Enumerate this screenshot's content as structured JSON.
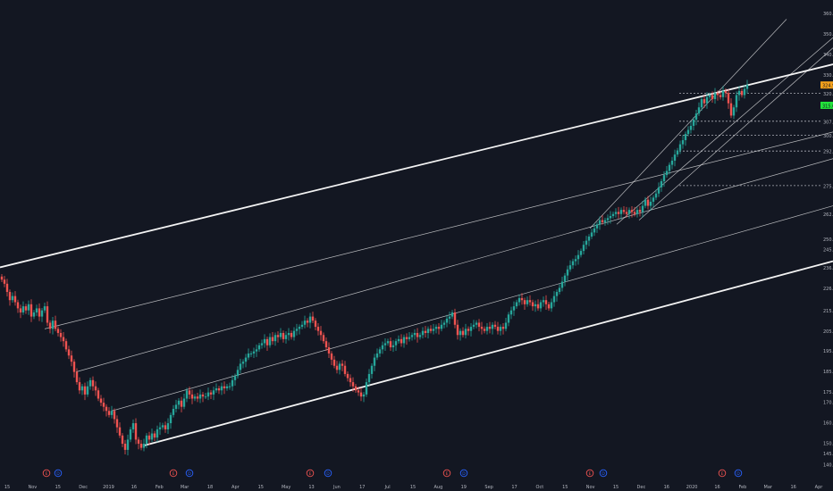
{
  "colors": {
    "background": "#131722",
    "up": "#26a69a",
    "down": "#ef5350",
    "axis_text": "#b2b5be",
    "line": "#ffffff",
    "dotted": "#d1d4dc",
    "last_price_badge": "#f7a21b",
    "green_badge": "#22e33b",
    "event_red": "#ef5350",
    "event_blue": "#2962ff"
  },
  "chart_data": {
    "type": "candlestick",
    "title": "",
    "xlabel": "",
    "ylabel": "",
    "ylim": [
      140,
      362
    ],
    "x_ticks": [
      "15",
      "Nov",
      "15",
      "Dec",
      "2019",
      "16",
      "Feb",
      "Mar",
      "18",
      "Apr",
      "15",
      "May",
      "13",
      "Jun",
      "17",
      "Jul",
      "15",
      "Aug",
      "19",
      "Sep",
      "17",
      "Oct",
      "15",
      "Nov",
      "15",
      "Dec",
      "16",
      "2020",
      "16",
      "Feb",
      "Mar",
      "16",
      "Apr"
    ],
    "y_ticks": [
      "360.00",
      "350.00",
      "340.00",
      "330.00",
      "324.90",
      "320.92",
      "315.00",
      "307.24",
      "300.45",
      "292.70",
      "275.86",
      "262.00",
      "250.00",
      "245.00",
      "236.00",
      "226.00",
      "215.00",
      "205.00",
      "195.50",
      "185.50",
      "175.50",
      "170.50",
      "160.50",
      "150.50",
      "145.50",
      "140.00"
    ],
    "price_badges": [
      {
        "label": "324.90",
        "style": "last_price"
      },
      {
        "label": "315.00",
        "style": "green"
      }
    ],
    "dotted_levels": [
      {
        "label": "320.92",
        "value": 320.92
      },
      {
        "label": "307.24",
        "value": 307.24
      },
      {
        "label": "300.45",
        "value": 300.45
      },
      {
        "label": "292.70",
        "value": 292.7
      },
      {
        "label": "275.86",
        "value": 275.86
      }
    ],
    "series_close": [
      [
        0,
        230
      ],
      [
        3,
        228
      ],
      [
        6,
        224
      ],
      [
        9,
        220
      ],
      [
        12,
        222
      ],
      [
        15,
        219
      ],
      [
        18,
        216
      ],
      [
        21,
        214
      ],
      [
        24,
        217
      ],
      [
        27,
        215
      ],
      [
        30,
        218
      ],
      [
        33,
        212
      ],
      [
        36,
        214
      ],
      [
        39,
        216
      ],
      [
        42,
        212
      ],
      [
        45,
        215
      ],
      [
        48,
        217
      ],
      [
        51,
        209
      ],
      [
        54,
        206
      ],
      [
        57,
        210
      ],
      [
        60,
        206
      ],
      [
        63,
        204
      ],
      [
        66,
        202
      ],
      [
        69,
        200
      ],
      [
        72,
        196
      ],
      [
        75,
        193
      ],
      [
        78,
        190
      ],
      [
        81,
        185
      ],
      [
        84,
        180
      ],
      [
        87,
        176
      ],
      [
        90,
        178
      ],
      [
        93,
        174
      ],
      [
        96,
        178
      ],
      [
        99,
        181
      ],
      [
        102,
        178
      ],
      [
        105,
        176
      ],
      [
        108,
        172
      ],
      [
        111,
        170
      ],
      [
        114,
        168
      ],
      [
        117,
        166
      ],
      [
        120,
        164
      ],
      [
        123,
        166
      ],
      [
        126,
        162
      ],
      [
        129,
        158
      ],
      [
        132,
        154
      ],
      [
        135,
        150
      ],
      [
        138,
        147
      ],
      [
        141,
        152
      ],
      [
        144,
        157
      ],
      [
        147,
        160
      ],
      [
        150,
        152
      ],
      [
        153,
        150
      ],
      [
        156,
        148
      ],
      [
        159,
        150
      ],
      [
        162,
        154
      ],
      [
        165,
        152
      ],
      [
        168,
        155
      ],
      [
        171,
        153
      ],
      [
        174,
        157
      ],
      [
        177,
        158
      ],
      [
        180,
        159
      ],
      [
        183,
        157
      ],
      [
        186,
        160
      ],
      [
        189,
        164
      ],
      [
        192,
        167
      ],
      [
        195,
        169
      ],
      [
        198,
        171
      ],
      [
        201,
        168
      ],
      [
        204,
        172
      ],
      [
        207,
        176
      ],
      [
        210,
        174
      ],
      [
        213,
        172
      ],
      [
        216,
        173
      ],
      [
        219,
        172
      ],
      [
        222,
        174
      ],
      [
        225,
        173
      ],
      [
        228,
        173
      ],
      [
        231,
        175
      ],
      [
        234,
        174
      ],
      [
        237,
        176
      ],
      [
        240,
        177
      ],
      [
        243,
        176
      ],
      [
        246,
        178
      ],
      [
        249,
        177
      ],
      [
        252,
        178
      ],
      [
        255,
        178
      ],
      [
        258,
        181
      ],
      [
        261,
        183
      ],
      [
        264,
        186
      ],
      [
        267,
        189
      ],
      [
        270,
        190
      ],
      [
        273,
        192
      ],
      [
        276,
        194
      ],
      [
        279,
        194
      ],
      [
        282,
        195
      ],
      [
        285,
        196
      ],
      [
        288,
        198
      ],
      [
        291,
        199
      ],
      [
        294,
        201
      ],
      [
        297,
        198
      ],
      [
        300,
        202
      ],
      [
        303,
        200
      ],
      [
        306,
        203
      ],
      [
        309,
        202
      ],
      [
        312,
        204
      ],
      [
        315,
        201
      ],
      [
        318,
        203
      ],
      [
        321,
        204
      ],
      [
        324,
        202
      ],
      [
        327,
        205
      ],
      [
        330,
        206
      ],
      [
        333,
        207
      ],
      [
        336,
        208
      ],
      [
        339,
        210
      ],
      [
        342,
        209
      ],
      [
        345,
        212
      ],
      [
        348,
        210
      ],
      [
        351,
        207
      ],
      [
        354,
        205
      ],
      [
        357,
        203
      ],
      [
        360,
        200
      ],
      [
        363,
        197
      ],
      [
        366,
        194
      ],
      [
        369,
        191
      ],
      [
        372,
        188
      ],
      [
        375,
        186
      ],
      [
        378,
        189
      ],
      [
        381,
        188
      ],
      [
        384,
        184
      ],
      [
        387,
        182
      ],
      [
        390,
        180
      ],
      [
        393,
        178
      ],
      [
        396,
        176
      ],
      [
        399,
        175
      ],
      [
        402,
        173
      ],
      [
        405,
        174
      ],
      [
        408,
        180
      ],
      [
        411,
        184
      ],
      [
        414,
        188
      ],
      [
        417,
        192
      ],
      [
        420,
        194
      ],
      [
        423,
        196
      ],
      [
        426,
        198
      ],
      [
        429,
        199
      ],
      [
        432,
        200
      ],
      [
        435,
        197
      ],
      [
        438,
        198
      ],
      [
        441,
        200
      ],
      [
        444,
        201
      ],
      [
        447,
        199
      ],
      [
        450,
        202
      ],
      [
        453,
        201
      ],
      [
        456,
        202
      ],
      [
        459,
        203
      ],
      [
        462,
        204
      ],
      [
        465,
        202
      ],
      [
        468,
        203
      ],
      [
        471,
        205
      ],
      [
        474,
        204
      ],
      [
        477,
        206
      ],
      [
        480,
        205
      ],
      [
        483,
        206
      ],
      [
        486,
        207
      ],
      [
        489,
        206
      ],
      [
        492,
        208
      ],
      [
        495,
        209
      ],
      [
        498,
        211
      ],
      [
        501,
        212
      ],
      [
        504,
        214
      ],
      [
        507,
        208
      ],
      [
        510,
        203
      ],
      [
        513,
        205
      ],
      [
        516,
        203
      ],
      [
        519,
        206
      ],
      [
        522,
        205
      ],
      [
        525,
        207
      ],
      [
        528,
        208
      ],
      [
        531,
        209
      ],
      [
        534,
        207
      ],
      [
        537,
        206
      ],
      [
        540,
        205
      ],
      [
        543,
        207
      ],
      [
        546,
        206
      ],
      [
        549,
        208
      ],
      [
        552,
        207
      ],
      [
        555,
        205
      ],
      [
        558,
        207
      ],
      [
        561,
        206
      ],
      [
        564,
        209
      ],
      [
        567,
        213
      ],
      [
        570,
        215
      ],
      [
        573,
        217
      ],
      [
        576,
        219
      ],
      [
        579,
        221
      ],
      [
        582,
        220
      ],
      [
        585,
        218
      ],
      [
        588,
        220
      ],
      [
        591,
        219
      ],
      [
        594,
        217
      ],
      [
        597,
        218
      ],
      [
        600,
        216
      ],
      [
        603,
        219
      ],
      [
        606,
        220
      ],
      [
        609,
        218
      ],
      [
        612,
        216
      ],
      [
        615,
        219
      ],
      [
        618,
        222
      ],
      [
        621,
        224
      ],
      [
        624,
        226
      ],
      [
        627,
        229
      ],
      [
        630,
        232
      ],
      [
        633,
        235
      ],
      [
        636,
        237
      ],
      [
        639,
        239
      ],
      [
        642,
        240
      ],
      [
        645,
        242
      ],
      [
        648,
        244
      ],
      [
        651,
        247
      ],
      [
        654,
        249
      ],
      [
        657,
        251
      ],
      [
        660,
        253
      ],
      [
        663,
        255
      ],
      [
        666,
        257
      ],
      [
        669,
        259
      ],
      [
        672,
        258
      ],
      [
        675,
        259
      ],
      [
        678,
        260
      ],
      [
        681,
        261
      ],
      [
        684,
        262
      ],
      [
        687,
        263
      ],
      [
        690,
        262
      ],
      [
        693,
        264
      ],
      [
        696,
        263
      ],
      [
        699,
        262
      ],
      [
        702,
        264
      ],
      [
        705,
        263
      ],
      [
        708,
        262
      ],
      [
        711,
        264
      ],
      [
        714,
        263
      ],
      [
        717,
        266
      ],
      [
        720,
        269
      ],
      [
        723,
        266
      ],
      [
        726,
        268
      ],
      [
        729,
        270
      ],
      [
        732,
        272
      ],
      [
        735,
        275
      ],
      [
        738,
        278
      ],
      [
        741,
        281
      ],
      [
        744,
        283
      ],
      [
        747,
        286
      ],
      [
        750,
        288
      ],
      [
        753,
        291
      ],
      [
        756,
        293
      ],
      [
        759,
        296
      ],
      [
        762,
        298
      ],
      [
        765,
        301
      ],
      [
        768,
        303
      ],
      [
        771,
        305
      ],
      [
        774,
        308
      ],
      [
        777,
        311
      ],
      [
        780,
        314
      ],
      [
        783,
        318
      ],
      [
        786,
        316
      ],
      [
        789,
        319
      ],
      [
        792,
        320
      ],
      [
        795,
        318
      ],
      [
        798,
        321
      ],
      [
        801,
        320
      ],
      [
        804,
        319
      ],
      [
        807,
        322
      ],
      [
        810,
        321
      ],
      [
        813,
        316
      ],
      [
        816,
        310
      ],
      [
        819,
        314
      ],
      [
        822,
        320
      ],
      [
        825,
        322
      ],
      [
        828,
        320
      ],
      [
        831,
        323
      ],
      [
        834,
        325
      ]
    ],
    "trend_lines": [
      {
        "name": "upper-boundary",
        "p1": [
          0,
          236
        ],
        "p2": [
          932,
          335
        ]
      },
      {
        "name": "lower-boundary",
        "p1": [
          160,
          149
        ],
        "p2": [
          932,
          239
        ]
      },
      {
        "name": "mid-line-1",
        "p1": [
          50,
          206
        ],
        "p2": [
          932,
          302
        ]
      },
      {
        "name": "mid-line-2",
        "p1": [
          85,
          185
        ],
        "p2": [
          932,
          289
        ]
      },
      {
        "name": "mid-line-3",
        "p1": [
          125,
          166
        ],
        "p2": [
          932,
          266
        ]
      },
      {
        "name": "steep-channel-upper",
        "p1": [
          660,
          255
        ],
        "p2": [
          880,
          357
        ]
      },
      {
        "name": "steep-channel-lower",
        "p1": [
          715,
          259
        ],
        "p2": [
          932,
          343
        ]
      },
      {
        "name": "steep-channel-mid",
        "p1": [
          690,
          257
        ],
        "p2": [
          932,
          348
        ]
      }
    ],
    "event_markers": [
      {
        "type": "earnings",
        "label": "E"
      },
      {
        "type": "dividend",
        "label": "D"
      },
      {
        "type": "earnings",
        "label": "E"
      },
      {
        "type": "dividend",
        "label": "D"
      },
      {
        "type": "earnings",
        "label": "E"
      },
      {
        "type": "dividend",
        "label": "D"
      },
      {
        "type": "earnings",
        "label": "E"
      },
      {
        "type": "dividend",
        "label": "D"
      },
      {
        "type": "earnings",
        "label": "E"
      },
      {
        "type": "dividend",
        "label": "D"
      },
      {
        "type": "earnings",
        "label": "E"
      },
      {
        "type": "dividend",
        "label": "D"
      }
    ],
    "grid": false,
    "legend": "none"
  }
}
